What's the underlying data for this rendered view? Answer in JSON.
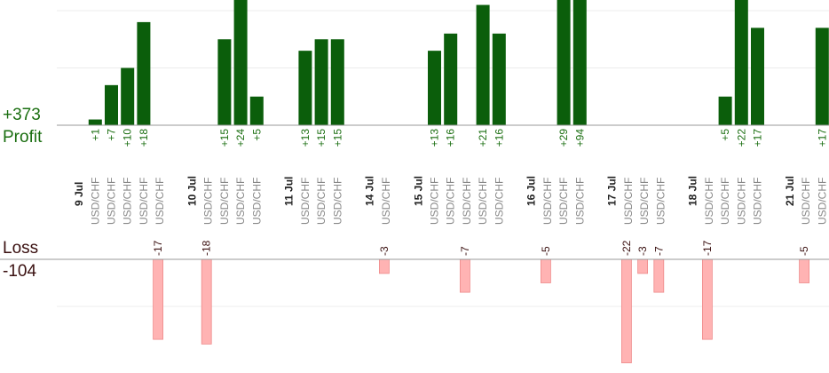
{
  "summary": {
    "profit_total": "+373",
    "profit_label": "Profit",
    "loss_label": "Loss",
    "loss_total": "-104"
  },
  "chart_data": {
    "type": "bar",
    "title": "",
    "xlabel": "",
    "ylabel": "",
    "colors": {
      "profit_bar": "#0b5e0b",
      "loss_bar": "#ffb3b3",
      "profit_label": "#1a6e10",
      "loss_label": "#3a1010",
      "date_label": "#222222",
      "pair_label": "#888888"
    },
    "categories": [
      {
        "date": "9 Jul",
        "pairs": [
          "USD/CHF",
          "USD/CHF",
          "USD/CHF",
          "USD/CHF",
          "USD/CHF"
        ]
      },
      {
        "date": "10 Jul",
        "pairs": [
          "USD/CHF",
          "USD/CHF",
          "USD/CHF",
          "USD/CHF"
        ]
      },
      {
        "date": "11 Jul",
        "pairs": [
          "USD/CHF",
          "USD/CHF",
          "USD/CHF"
        ]
      },
      {
        "date": "14 Jul",
        "pairs": [
          "USD/CHF"
        ]
      },
      {
        "date": "15 Jul",
        "pairs": [
          "USD/CHF",
          "USD/CHF",
          "USD/CHF",
          "USD/CHF",
          "USD/CHF"
        ]
      },
      {
        "date": "16 Jul",
        "pairs": [
          "USD/CHF",
          "USD/CHF",
          "USD/CHF"
        ]
      },
      {
        "date": "17 Jul",
        "pairs": [
          "USD/CHF",
          "USD/CHF",
          "USD/CHF"
        ]
      },
      {
        "date": "18 Jul",
        "pairs": [
          "USD/CHF",
          "USD/CHF",
          "USD/CHF",
          "USD/CHF"
        ]
      },
      {
        "date": "21 Jul",
        "pairs": [
          "USD/CHF",
          "USD/CHF"
        ]
      }
    ],
    "series": [
      {
        "name": "Profit",
        "values": [
          [
            1,
            7,
            10,
            18,
            null
          ],
          [
            null,
            15,
            24,
            5
          ],
          [
            13,
            15,
            15
          ],
          [
            null
          ],
          [
            13,
            16,
            null,
            21,
            16
          ],
          [
            null,
            29,
            94
          ],
          [
            null,
            null,
            null
          ],
          [
            null,
            5,
            22,
            17
          ],
          [
            null,
            17
          ]
        ]
      },
      {
        "name": "Loss",
        "values": [
          [
            null,
            null,
            null,
            null,
            -17
          ],
          [
            -18,
            null,
            null,
            null
          ],
          [
            null,
            null,
            null
          ],
          [
            -3
          ],
          [
            null,
            null,
            -7,
            null,
            null
          ],
          [
            -5,
            null,
            null
          ],
          [
            -22,
            -3,
            -7
          ],
          [
            -17,
            null,
            null,
            null
          ],
          [
            -5,
            null
          ]
        ]
      }
    ],
    "profit_ylim": [
      0,
      20
    ],
    "loss_ylim": [
      -20,
      0
    ],
    "grid": true
  }
}
